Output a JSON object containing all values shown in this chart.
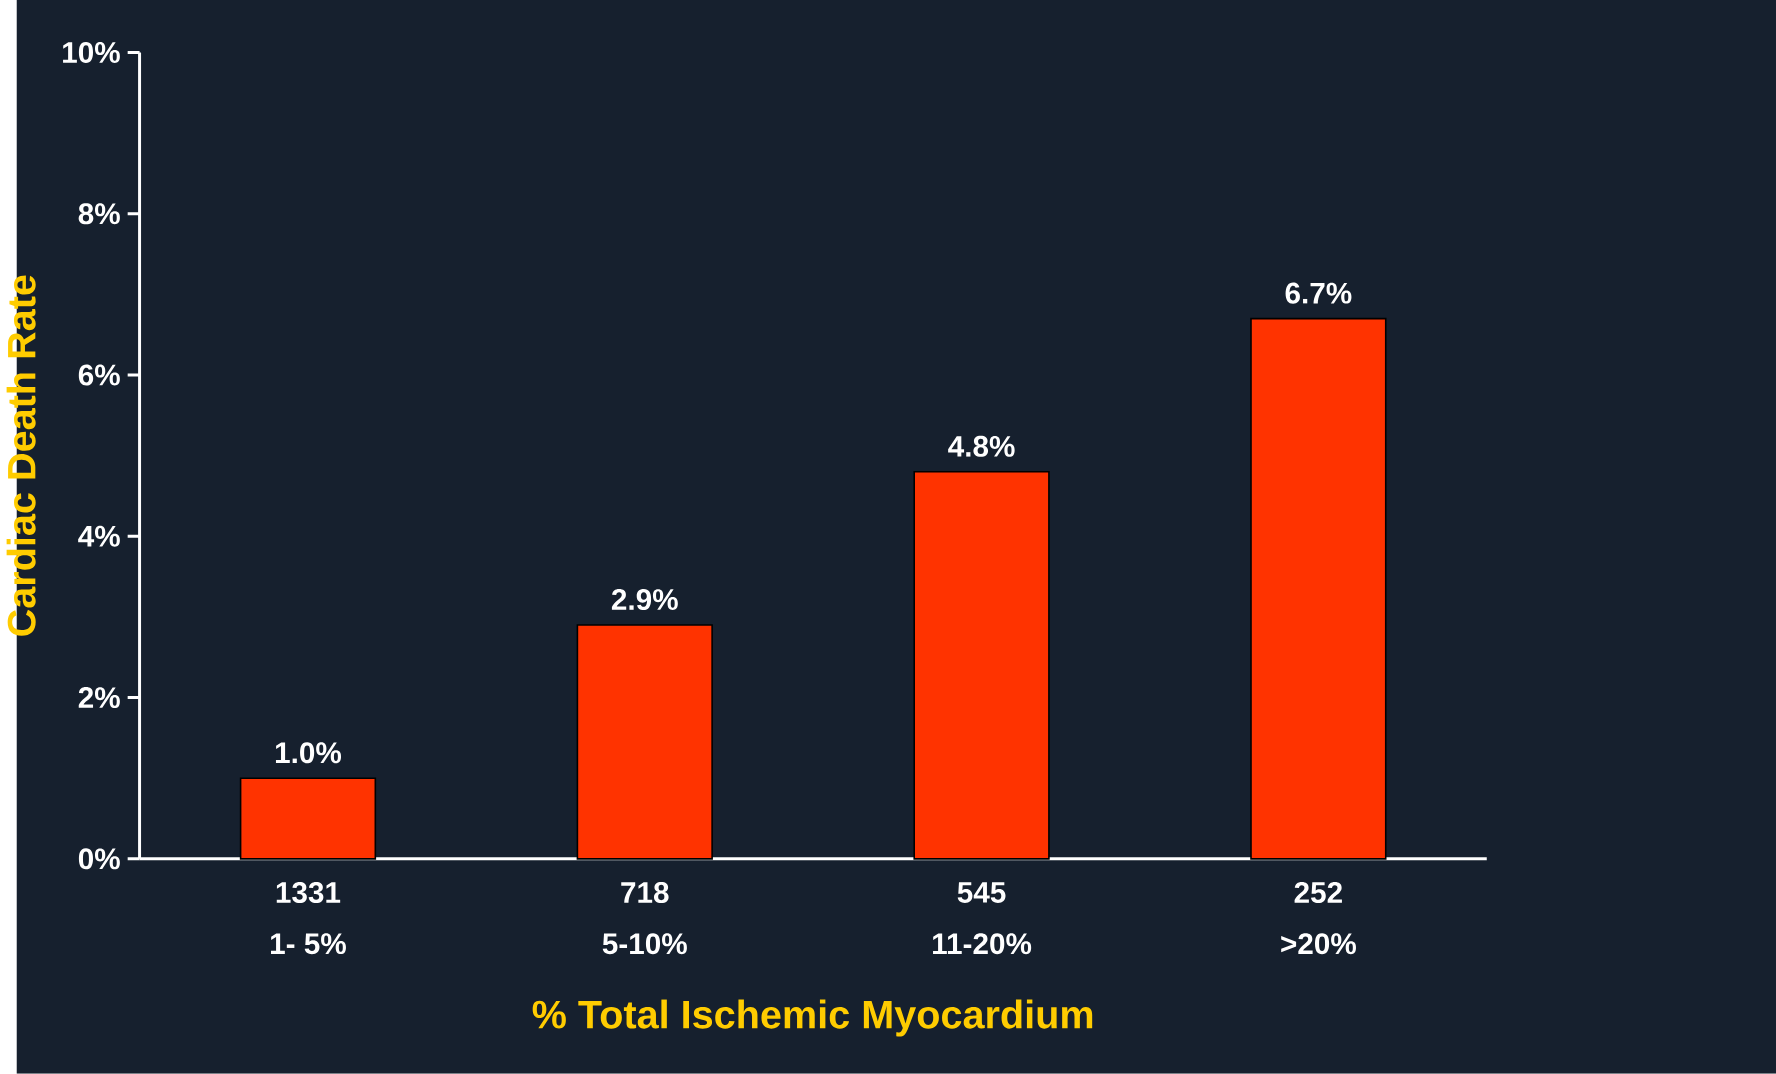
{
  "chart_data": {
    "type": "bar",
    "categories": [
      "1- 5%",
      "5-10%",
      "11-20%",
      ">20%"
    ],
    "values": [
      1.0,
      2.9,
      4.8,
      6.7
    ],
    "value_labels": [
      "1.0%",
      "2.9%",
      "4.8%",
      "6.7%"
    ],
    "color": "#ff3300",
    "xlabel": "% Total Ischemic Myocardium",
    "ylabel": "Cardiac Death Rate",
    "ylim": [
      0,
      10
    ],
    "yticks": [
      {
        "value": 0,
        "label": "0%"
      },
      {
        "value": 2,
        "label": "2%"
      },
      {
        "value": 4,
        "label": "4%"
      },
      {
        "value": 6,
        "label": "6%"
      },
      {
        "value": 8,
        "label": "8%"
      },
      {
        "value": 10,
        "label": "10%"
      }
    ],
    "annotations": [
      "1331",
      "718",
      "545",
      "252"
    ]
  }
}
